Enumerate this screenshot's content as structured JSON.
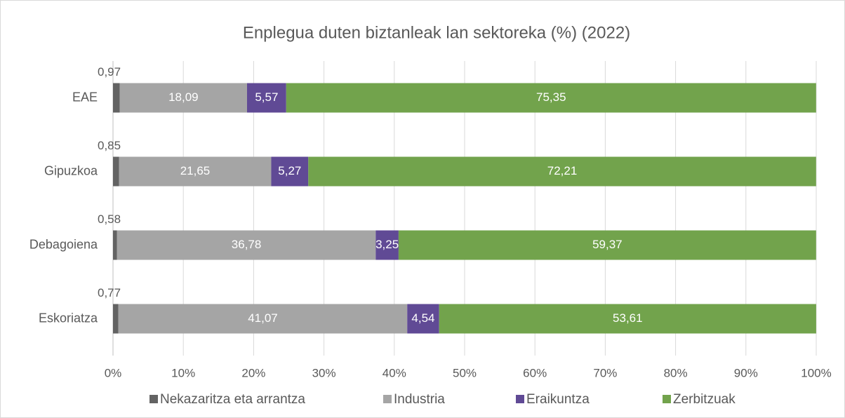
{
  "chart_data": {
    "type": "stacked-bar-horizontal",
    "title": "Enplegua duten biztanleak lan sektoreka (%) (2022)",
    "categories": [
      "EAE",
      "Gipuzkoa",
      "Debagoiena",
      "Eskoriatza"
    ],
    "series": [
      {
        "name": "Nekazaritza eta arrantza",
        "color": "#636363",
        "values": [
          0.97,
          0.85,
          0.58,
          0.77
        ],
        "value_labels": [
          "0,97",
          "0,85",
          "0,58",
          "0,77"
        ]
      },
      {
        "name": "Industria",
        "color": "#a5a5a5",
        "values": [
          18.09,
          21.65,
          36.78,
          41.07
        ],
        "value_labels": [
          "18,09",
          "21,65",
          "36,78",
          "41,07"
        ]
      },
      {
        "name": "Eraikuntza",
        "color": "#604a95",
        "values": [
          5.57,
          5.27,
          3.25,
          4.54
        ],
        "value_labels": [
          "5,57",
          "5,27",
          "3,25",
          "4,54"
        ]
      },
      {
        "name": "Zerbitzuak",
        "color": "#72a34c",
        "values": [
          75.35,
          72.21,
          59.37,
          53.61
        ],
        "value_labels": [
          "75,35",
          "72,21",
          "59,37",
          "53,61"
        ]
      }
    ],
    "xlim": [
      0,
      100
    ],
    "xticks": [
      {
        "value": 0,
        "label": "0%"
      },
      {
        "value": 10,
        "label": "10%"
      },
      {
        "value": 20,
        "label": "20%"
      },
      {
        "value": 30,
        "label": "30%"
      },
      {
        "value": 40,
        "label": "40%"
      },
      {
        "value": 50,
        "label": "50%"
      },
      {
        "value": 60,
        "label": "60%"
      },
      {
        "value": 70,
        "label": "70%"
      },
      {
        "value": 80,
        "label": "80%"
      },
      {
        "value": 90,
        "label": "90%"
      },
      {
        "value": 100,
        "label": "100%"
      }
    ],
    "grid": true,
    "legend": "bottom"
  }
}
